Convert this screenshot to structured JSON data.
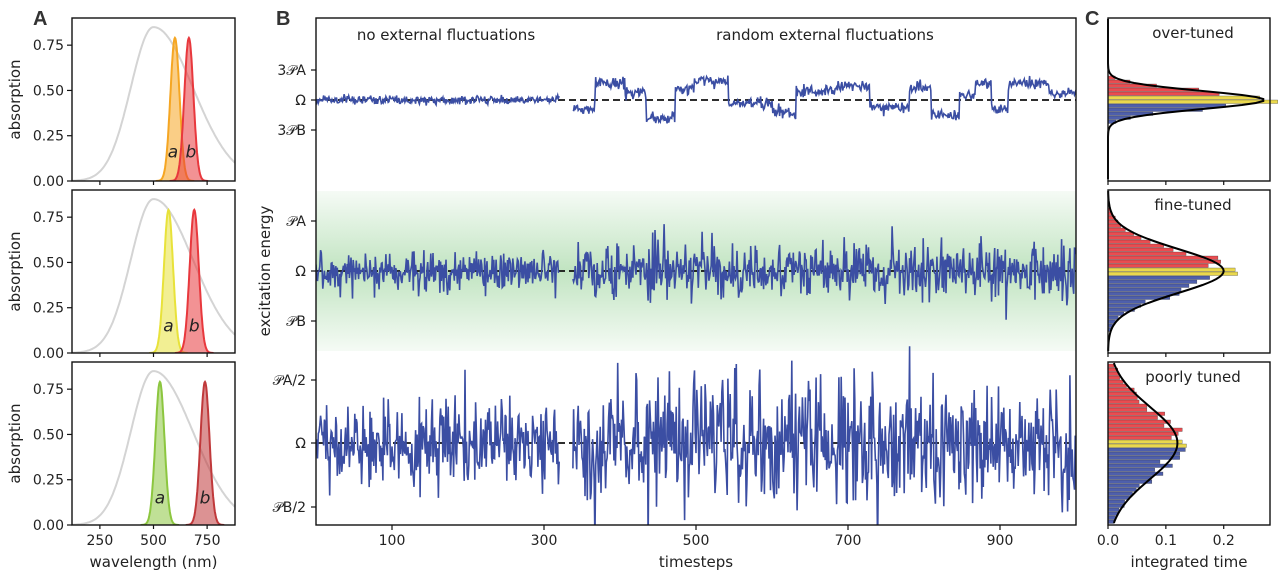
{
  "chart_data": [
    {
      "panel": "A",
      "type": "area",
      "subplots": [
        {
          "labels": [
            "a",
            "b"
          ],
          "peaks": [
            600,
            665
          ],
          "colors": [
            "#f5a623",
            "#e8383d"
          ]
        },
        {
          "labels": [
            "a",
            "b"
          ],
          "peaks": [
            570,
            690
          ],
          "colors": [
            "#e8e23a",
            "#e8383d"
          ]
        },
        {
          "labels": [
            "a",
            "b"
          ],
          "peaks": [
            530,
            740
          ],
          "colors": [
            "#8cc63f",
            "#c0393b"
          ]
        }
      ],
      "reference_curve": {
        "peak_nm": 500,
        "peak_absorption": 0.85,
        "color": "#d4d4d4"
      },
      "peak_absorption": 0.79,
      "xlabel": "wavelength (nm)",
      "ylabel": "absorption",
      "xlim": [
        120,
        880
      ],
      "ylim": [
        0,
        0.9
      ],
      "xticks": [
        "250",
        "500",
        "750"
      ],
      "yticks": [
        "0.00",
        "0.25",
        "0.50",
        "0.75"
      ]
    },
    {
      "panel": "B",
      "type": "line",
      "ylabel": "excitation energy",
      "xlabel": "timesteps",
      "xlim": [
        0,
        1000
      ],
      "xticks": [
        "100",
        "300",
        "500",
        "700",
        "900"
      ],
      "annotations": [
        "no external fluctuations",
        "random external fluctuations"
      ],
      "line_color": "#3b4ea3",
      "subplots": [
        {
          "yticks": [
            "3𝒫A",
            "Ω",
            "3𝒫B"
          ],
          "amplitude": 0.15,
          "switching": true
        },
        {
          "yticks": [
            "𝒫A",
            "Ω",
            "𝒫B"
          ],
          "amplitude": 0.45,
          "switching": false,
          "band_color": "#5cb85c"
        },
        {
          "yticks": [
            "𝒫A/2",
            "Ω",
            "𝒫B/2"
          ],
          "amplitude": 1.0,
          "switching": false
        }
      ]
    },
    {
      "panel": "C",
      "type": "bar",
      "xlabel": "integrated time",
      "xticks": [
        "0.0",
        "0.1",
        "0.2"
      ],
      "xlim": [
        0,
        0.28
      ],
      "titles": [
        "over-tuned",
        "fine-tuned",
        "poorly tuned"
      ],
      "colors": {
        "above": "#e8383d",
        "middle": "#e8d43a",
        "below": "#3b4ea3"
      }
    }
  ]
}
